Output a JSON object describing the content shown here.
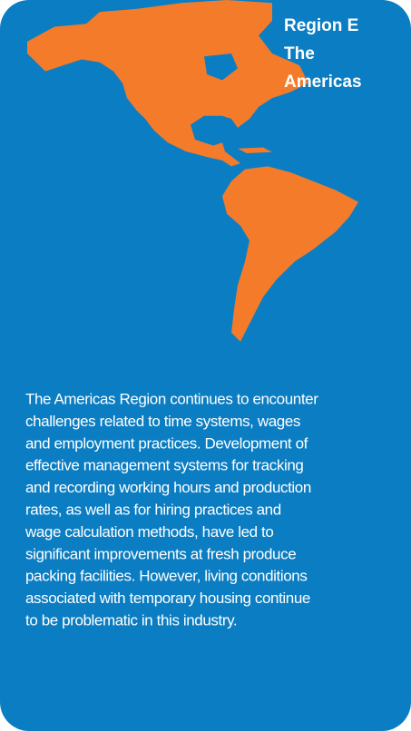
{
  "card": {
    "title": [
      "Region E",
      "The",
      "Americas"
    ],
    "body": [
      "The Americas Region continues to encounter",
      "challenges related to time systems, wages",
      "and employment practices. Development of",
      "effective management systems for tracking",
      "and recording working hours and production",
      "rates, as well as for hiring practices and",
      "wage calculation methods, have led to",
      "significant improvements at fresh produce",
      "packing facilities. However, living conditions",
      "associated with temporary housing continue",
      "to be problematic in this industry."
    ]
  }
}
